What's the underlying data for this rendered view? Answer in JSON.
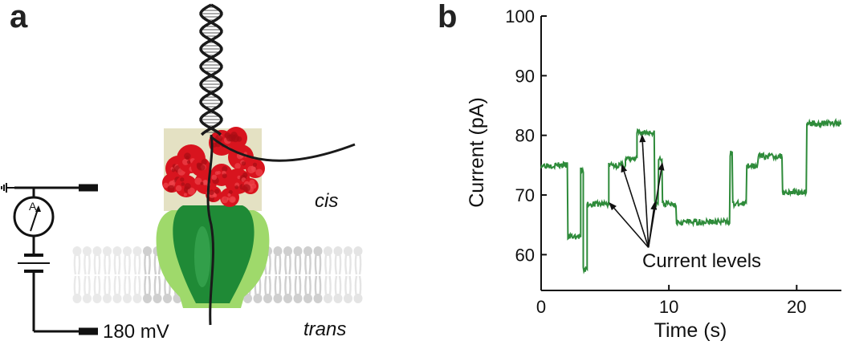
{
  "panel_a": {
    "letter": "a",
    "label_cis": "cis",
    "label_trans": "trans",
    "voltage_label": "180  mV",
    "ammeter_label": "A",
    "colors": {
      "protein": "#d8141e",
      "pore_dark": "#1f8a36",
      "pore_light": "#9fd96b",
      "highlight_box": "#e4e1c3",
      "lipid": "#cfcfcf",
      "dna": "#1a1a1a"
    },
    "icons": [
      "ground-icon",
      "ammeter-icon",
      "battery-icon",
      "dna-helix-icon",
      "nanopore-icon",
      "lipid-bilayer-icon"
    ]
  },
  "panel_b": {
    "letter": "b",
    "annotation": "Current levels"
  },
  "chart_data": {
    "type": "line",
    "title": "",
    "xlabel": "Time (s)",
    "ylabel": "Current (pA)",
    "xlim": [
      0,
      23.5
    ],
    "ylim": [
      54,
      100
    ],
    "xticks": [
      0,
      10,
      20
    ],
    "yticks": [
      60,
      70,
      80,
      90,
      100
    ],
    "grid": false,
    "series": [
      {
        "color": "#2e8b3a",
        "segments": [
          [
            0,
            2.1,
            75
          ],
          [
            2.1,
            3.1,
            63
          ],
          [
            3.1,
            3.3,
            74
          ],
          [
            3.3,
            3.6,
            57.5
          ],
          [
            3.6,
            5.3,
            68.5
          ],
          [
            5.3,
            6.6,
            75
          ],
          [
            6.6,
            7.5,
            76
          ],
          [
            7.5,
            8.9,
            80.5
          ],
          [
            8.9,
            9.2,
            68.5
          ],
          [
            9.2,
            9.5,
            76
          ],
          [
            9.5,
            10.6,
            68.5
          ],
          [
            10.6,
            14.8,
            65.5
          ],
          [
            14.8,
            15.0,
            77
          ],
          [
            15.0,
            16.1,
            68.5
          ],
          [
            16.1,
            17.0,
            75
          ],
          [
            17.0,
            18.9,
            76.5
          ],
          [
            18.9,
            20.8,
            70.5
          ],
          [
            20.8,
            23.5,
            82
          ]
        ],
        "noise_pA": 0.5
      }
    ]
  }
}
